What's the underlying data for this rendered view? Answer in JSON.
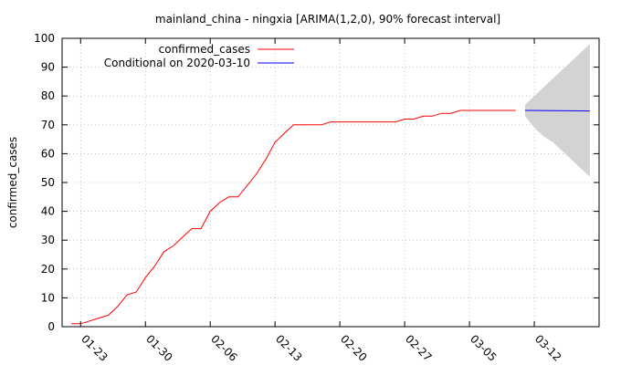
{
  "chart_data": {
    "type": "line",
    "title": "mainland_china - ningxia [ARIMA(1,2,0), 90% forecast interval]",
    "xlabel": "",
    "ylabel": "confirmed_cases",
    "ylim": [
      0,
      100
    ],
    "yticks": [
      0,
      10,
      20,
      30,
      40,
      50,
      60,
      70,
      80,
      90,
      100
    ],
    "xlim": [
      "2020-01-21",
      "2020-03-19"
    ],
    "xticks": [
      "01-23",
      "01-30",
      "02-06",
      "02-13",
      "02-20",
      "02-27",
      "03-05",
      "03-12"
    ],
    "grid": true,
    "legend": "top-left",
    "series": [
      {
        "name": "confirmed_cases",
        "color": "#ff0000",
        "x": [
          "2020-01-22",
          "2020-01-23",
          "2020-01-24",
          "2020-01-25",
          "2020-01-26",
          "2020-01-27",
          "2020-01-28",
          "2020-01-29",
          "2020-01-30",
          "2020-01-31",
          "2020-02-01",
          "2020-02-02",
          "2020-02-03",
          "2020-02-04",
          "2020-02-05",
          "2020-02-06",
          "2020-02-07",
          "2020-02-08",
          "2020-02-09",
          "2020-02-10",
          "2020-02-11",
          "2020-02-12",
          "2020-02-13",
          "2020-02-14",
          "2020-02-15",
          "2020-02-16",
          "2020-02-17",
          "2020-02-18",
          "2020-02-19",
          "2020-02-20",
          "2020-02-21",
          "2020-02-22",
          "2020-02-23",
          "2020-02-24",
          "2020-02-25",
          "2020-02-26",
          "2020-02-27",
          "2020-02-28",
          "2020-02-29",
          "2020-03-01",
          "2020-03-02",
          "2020-03-03",
          "2020-03-04",
          "2020-03-05",
          "2020-03-06",
          "2020-03-07",
          "2020-03-08",
          "2020-03-09",
          "2020-03-10"
        ],
        "y": [
          1,
          1,
          2,
          3,
          4,
          7,
          11,
          12,
          17,
          21,
          26,
          28,
          31,
          34,
          34,
          40,
          43,
          45,
          45,
          49,
          53,
          58,
          64,
          67,
          70,
          70,
          70,
          70,
          71,
          71,
          71,
          71,
          71,
          71,
          71,
          71,
          72,
          72,
          73,
          73,
          74,
          74,
          75,
          75,
          75,
          75,
          75,
          75,
          75
        ]
      },
      {
        "name": "Conditional on 2020-03-10",
        "color": "#0000ff",
        "x": [
          "2020-03-11",
          "2020-03-18"
        ],
        "y": [
          75.0,
          74.8
        ]
      }
    ],
    "forecast_interval": {
      "color": "#d3d3d3",
      "x": [
        "2020-03-11",
        "2020-03-12",
        "2020-03-13",
        "2020-03-14",
        "2020-03-15",
        "2020-03-16",
        "2020-03-17",
        "2020-03-18"
      ],
      "lower": [
        73,
        69,
        66,
        64,
        61,
        58,
        55,
        52
      ],
      "upper": [
        77,
        80,
        83,
        86,
        89,
        92,
        95,
        98
      ]
    }
  }
}
